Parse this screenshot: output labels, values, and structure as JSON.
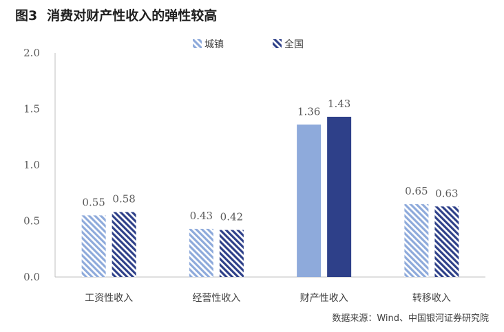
{
  "header": {
    "figure_no": "图3",
    "title": "消费对财产性收入的弹性较高"
  },
  "source": "数据来源：Wind、中国银河证券研究院",
  "colors": {
    "urban": "#8eaadb",
    "national": "#2e4089",
    "axis": "#bfbfbf"
  },
  "chart_data": {
    "type": "bar",
    "categories": [
      "工资性收入",
      "经营性收入",
      "财产性收入",
      "转移收入"
    ],
    "series": [
      {
        "name": "城镇",
        "values": [
          0.55,
          0.43,
          1.36,
          0.65
        ],
        "labels": [
          "0.55",
          "0.43",
          "1.36",
          "0.65"
        ]
      },
      {
        "name": "全国",
        "values": [
          0.58,
          0.42,
          1.43,
          0.63
        ],
        "labels": [
          "0.58",
          "0.42",
          "1.43",
          "0.63"
        ]
      }
    ],
    "ylim": [
      0,
      2.0
    ],
    "yticks": [
      "0.0",
      "0.5",
      "1.0",
      "1.5",
      "2.0"
    ],
    "hatched_categories": [
      "工资性收入",
      "经营性收入",
      "转移收入"
    ],
    "legend_position": "top-center",
    "grid": false
  }
}
